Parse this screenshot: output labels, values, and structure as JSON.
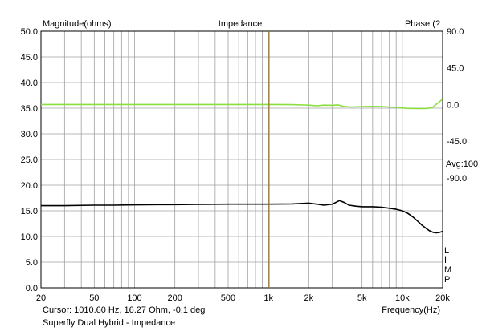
{
  "chart_data": {
    "type": "line",
    "title": "Impedance",
    "left_axis_label": "Magnitude(ohms)",
    "right_axis_label": "Phase (?",
    "x_axis_label": "Frequency(Hz)",
    "x_scale": "log",
    "xlim": [
      20,
      20000
    ],
    "ylim_left": [
      0,
      50
    ],
    "ylim_right": [
      -225,
      90
    ],
    "x_ticks": [
      {
        "value": 20,
        "label": "20"
      },
      {
        "value": 50,
        "label": "50"
      },
      {
        "value": 100,
        "label": "100"
      },
      {
        "value": 200,
        "label": "200"
      },
      {
        "value": 500,
        "label": "500"
      },
      {
        "value": 1000,
        "label": "1k"
      },
      {
        "value": 2000,
        "label": "2k"
      },
      {
        "value": 5000,
        "label": "5k"
      },
      {
        "value": 10000,
        "label": "10k"
      },
      {
        "value": 20000,
        "label": "20k"
      }
    ],
    "y_ticks_left": [
      "0.0",
      "5.0",
      "10.0",
      "15.0",
      "20.0",
      "25.0",
      "30.0",
      "35.0",
      "40.0",
      "45.0",
      "50.0"
    ],
    "y_ticks_right": [
      {
        "value": 90,
        "label": "90.0"
      },
      {
        "value": 45,
        "label": "45.0"
      },
      {
        "value": 0,
        "label": "0.0"
      },
      {
        "value": -45,
        "label": "-45.0"
      },
      {
        "value": -90,
        "label": "-90.0"
      }
    ],
    "right_note": "Avg:100",
    "lim_label": [
      "L",
      "I",
      "M",
      "P"
    ],
    "cursor_frequency": 1010.6,
    "grid": true,
    "series": [
      {
        "name": "Magnitude",
        "axis": "left",
        "color": "#000000",
        "x": [
          20,
          30,
          50,
          70,
          100,
          150,
          200,
          300,
          500,
          700,
          1000,
          1500,
          2000,
          2300,
          2600,
          3000,
          3400,
          3700,
          4000,
          4500,
          5000,
          6000,
          7000,
          8000,
          9000,
          10000,
          11000,
          12000,
          13000,
          14000,
          15000,
          16000,
          17000,
          18000,
          19000,
          20000
        ],
        "values": [
          16.0,
          16.0,
          16.1,
          16.1,
          16.15,
          16.2,
          16.2,
          16.25,
          16.3,
          16.3,
          16.3,
          16.35,
          16.5,
          16.3,
          16.1,
          16.3,
          17.0,
          16.6,
          16.1,
          15.9,
          15.8,
          15.8,
          15.7,
          15.5,
          15.3,
          15.0,
          14.5,
          13.8,
          13.0,
          12.2,
          11.6,
          11.1,
          10.8,
          10.7,
          10.8,
          11.0
        ]
      },
      {
        "name": "Phase",
        "axis": "right",
        "color": "#8adf3c",
        "x": [
          20,
          50,
          100,
          200,
          350,
          500,
          1000,
          1500,
          2000,
          2300,
          2600,
          3000,
          3300,
          3700,
          4200,
          5000,
          6000,
          7000,
          8000,
          9000,
          10000,
          11000,
          13000,
          15000,
          16000,
          17000,
          18000,
          19000,
          20000
        ],
        "values": [
          0,
          0,
          0,
          0,
          0,
          0,
          0,
          -0.2,
          -0.8,
          -1.5,
          -0.8,
          -1.0,
          -0.5,
          -2.5,
          -3.0,
          -2.5,
          -2.3,
          -2.6,
          -3.0,
          -3.5,
          -4.2,
          -4.8,
          -5.0,
          -5.0,
          -4.3,
          -3.0,
          0.5,
          3.5,
          7.0
        ]
      }
    ]
  },
  "footer": {
    "cursor_text": "Cursor: 1010.60 Hz, 16.27 Ohm, -0.1 deg",
    "caption": "Superfly Dual Hybrid - Impedance"
  },
  "colors": {
    "grid": "#a0a0a0",
    "cursor": "#a07a2a",
    "magnitude": "#000000",
    "phase": "#8adf3c"
  }
}
